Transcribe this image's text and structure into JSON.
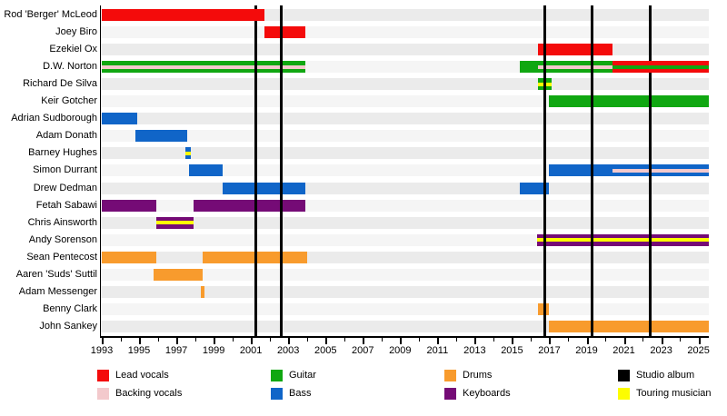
{
  "chart_data": {
    "type": "bar",
    "subtype": "band-members-timeline-gantt",
    "title": "",
    "x_axis": {
      "start_year": 1993,
      "end_year": 2025.55,
      "labeled_ticks": [
        1993,
        1995,
        1997,
        1999,
        2001,
        2003,
        2005,
        2007,
        2009,
        2011,
        2013,
        2015,
        2017,
        2019,
        2021,
        2023,
        2025
      ],
      "minor_tick_every_years": 1,
      "grid": false
    },
    "studio_album_lines_years": [
      2001.25,
      2002.62,
      2016.75,
      2019.28,
      2022.4
    ],
    "roles_colors": {
      "lead_vocals": "#f40b0b",
      "backing_vocals": "#f3c9cc",
      "guitar": "#10a711",
      "bass": "#1065c8",
      "drums": "#f89b2d",
      "keyboards": "#750b76",
      "touring": "#fdfd00",
      "studio_album": "#000000"
    },
    "row_track_colors": [
      "#ebebeb",
      "#f5f5f5"
    ],
    "members": [
      {
        "name": "Rod 'Berger' McLeod",
        "bars": [
          {
            "start": 1993,
            "end": 2001.7,
            "role": "lead_vocals",
            "over_album_lines": true
          }
        ]
      },
      {
        "name": "Joey Biro",
        "bars": [
          {
            "start": 2001.7,
            "end": 2003.9,
            "role": "lead_vocals"
          }
        ]
      },
      {
        "name": "Ezekiel Ox",
        "bars": [
          {
            "start": 2016.4,
            "end": 2020.4,
            "role": "lead_vocals"
          }
        ]
      },
      {
        "name": "D.W. Norton",
        "bars": [
          {
            "start": 1993,
            "end": 2003.9,
            "role": "guitar",
            "stripe": "backing_vocals"
          },
          {
            "start": 2015.4,
            "end": 2020.4,
            "role": "guitar",
            "stripe": "backing_vocals",
            "stripe_start": 2016.4
          },
          {
            "start": 2020.4,
            "end": 2025.55,
            "role": "lead_vocals",
            "stripe": "guitar",
            "over_album_lines": true
          }
        ]
      },
      {
        "name": "Richard De Silva",
        "bars": [
          {
            "start": 2016.4,
            "end": 2017.1,
            "role": "guitar",
            "stripe": "touring"
          }
        ]
      },
      {
        "name": "Keir Gotcher",
        "bars": [
          {
            "start": 2017,
            "end": 2025.55,
            "role": "guitar"
          }
        ]
      },
      {
        "name": "Adrian Sudborough",
        "bars": [
          {
            "start": 1993,
            "end": 1994.9,
            "role": "bass"
          }
        ]
      },
      {
        "name": "Adam Donath",
        "bars": [
          {
            "start": 1994.8,
            "end": 1997.6,
            "role": "bass"
          }
        ]
      },
      {
        "name": "Barney Hughes",
        "bars": [
          {
            "start": 1997.5,
            "end": 1997.8,
            "role": "bass",
            "stripe": "touring"
          }
        ]
      },
      {
        "name": "Simon Durrant",
        "bars": [
          {
            "start": 1997.7,
            "end": 1999.5,
            "role": "bass"
          },
          {
            "start": 2017,
            "end": 2025.55,
            "role": "bass",
            "stripe": "backing_vocals",
            "stripe_start": 2020.4
          }
        ]
      },
      {
        "name": "Drew Dedman",
        "bars": [
          {
            "start": 1999.5,
            "end": 2003.9,
            "role": "bass"
          },
          {
            "start": 2015.4,
            "end": 2017,
            "role": "bass"
          }
        ]
      },
      {
        "name": "Fetah Sabawi",
        "bars": [
          {
            "start": 1993,
            "end": 1995.9,
            "role": "keyboards"
          },
          {
            "start": 1997.9,
            "end": 2003.9,
            "role": "keyboards"
          }
        ]
      },
      {
        "name": "Chris Ainsworth",
        "bars": [
          {
            "start": 1995.9,
            "end": 1997.9,
            "role": "keyboards",
            "stripe": "touring"
          }
        ]
      },
      {
        "name": "Andy Sorenson",
        "bars": [
          {
            "start": 2016.35,
            "end": 2025.55,
            "role": "keyboards",
            "stripe": "touring"
          }
        ]
      },
      {
        "name": "Sean Pentecost",
        "bars": [
          {
            "start": 1993,
            "end": 1995.9,
            "role": "drums"
          },
          {
            "start": 1998.4,
            "end": 2004,
            "role": "drums"
          }
        ]
      },
      {
        "name": "Aaren 'Suds' Suttil",
        "bars": [
          {
            "start": 1995.8,
            "end": 1998.4,
            "role": "drums"
          }
        ]
      },
      {
        "name": "Adam Messenger",
        "bars": [
          {
            "start": 1998.3,
            "end": 1998.5,
            "role": "drums"
          }
        ]
      },
      {
        "name": "Benny Clark",
        "bars": [
          {
            "start": 2016.4,
            "end": 2017,
            "role": "drums"
          }
        ]
      },
      {
        "name": "John Sankey",
        "bars": [
          {
            "start": 2017,
            "end": 2025.55,
            "role": "drums"
          }
        ]
      }
    ]
  },
  "legend": {
    "items": [
      {
        "label": "Lead vocals",
        "color": "#f40b0b"
      },
      {
        "label": "Backing vocals",
        "color": "#f3c9cc"
      },
      {
        "label": "Guitar",
        "color": "#10a711"
      },
      {
        "label": "Bass",
        "color": "#1065c8"
      },
      {
        "label": "Drums",
        "color": "#f89b2d"
      },
      {
        "label": "Keyboards",
        "color": "#750b76"
      },
      {
        "label": "Studio album",
        "color": "#000000"
      },
      {
        "label": "Touring musician",
        "color": "#fdfd00"
      }
    ]
  }
}
